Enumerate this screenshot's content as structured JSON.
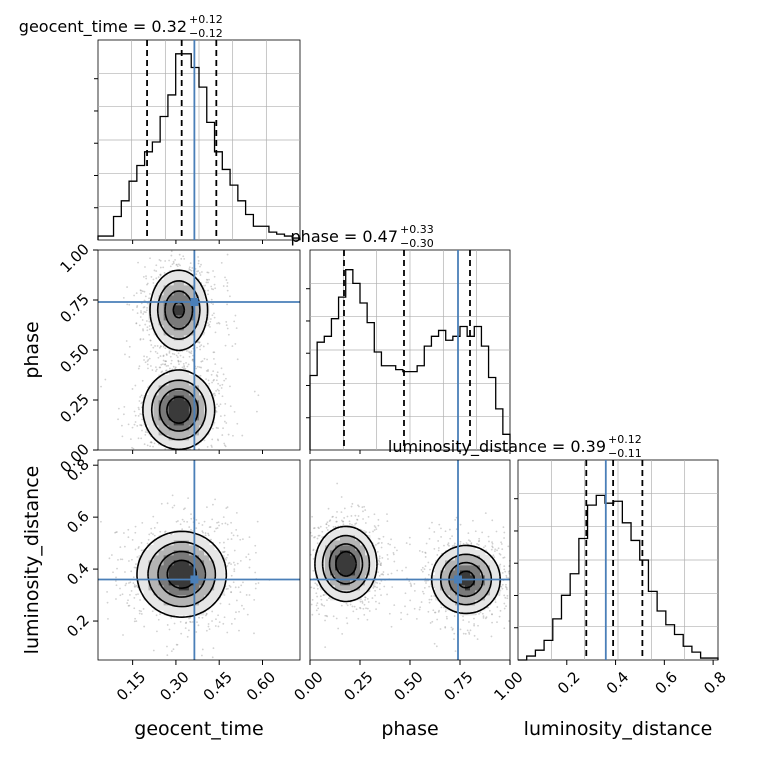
{
  "chart_data": [
    {
      "type": "histogram",
      "panel": "geocent_time-marginal",
      "title": {
        "main": "geocent_time = 0.32",
        "sup": "+0.12",
        "sub": "−0.12"
      },
      "x_range": [
        0.03,
        0.73
      ],
      "bins_counts": [
        0.02,
        0.02,
        0.12,
        0.2,
        0.3,
        0.38,
        0.45,
        0.5,
        0.63,
        0.74,
        0.95,
        0.95,
        0.88,
        0.78,
        0.6,
        0.45,
        0.36,
        0.28,
        0.2,
        0.13,
        0.07,
        0.07,
        0.04,
        0.03,
        0.02,
        0.01
      ],
      "quantile_lines": [
        0.2,
        0.32,
        0.44
      ],
      "truth": 0.364
    },
    {
      "type": "histogram",
      "panel": "phase-marginal",
      "title": {
        "main": "phase = 0.47",
        "sup": "+0.33",
        "sub": "−0.30"
      },
      "x_range": [
        0.0,
        1.0
      ],
      "bins_counts": [
        0.38,
        0.55,
        0.58,
        0.67,
        0.78,
        0.92,
        0.85,
        0.75,
        0.65,
        0.5,
        0.43,
        0.43,
        0.41,
        0.4,
        0.4,
        0.43,
        0.53,
        0.58,
        0.61,
        0.56,
        0.58,
        0.63,
        0.58,
        0.63,
        0.53,
        0.37,
        0.21,
        0.08
      ],
      "quantile_lines": [
        0.17,
        0.47,
        0.8
      ],
      "truth": 0.74
    },
    {
      "type": "histogram",
      "panel": "luminosity_distance-marginal",
      "title": {
        "main": "luminosity_distance = 0.39",
        "sup": "+0.12",
        "sub": "−0.11"
      },
      "x_range": [
        0.0,
        0.82
      ],
      "bins_counts": [
        0.0,
        0.02,
        0.05,
        0.1,
        0.21,
        0.33,
        0.44,
        0.62,
        0.79,
        0.84,
        0.8,
        0.81,
        0.7,
        0.61,
        0.51,
        0.35,
        0.25,
        0.18,
        0.13,
        0.07,
        0.04,
        0.01,
        0.01
      ],
      "quantile_lines": [
        0.28,
        0.39,
        0.51
      ],
      "truth": 0.36
    },
    {
      "type": "contour",
      "panel": "phase-vs-geocent_time",
      "x_range": [
        0.03,
        0.73
      ],
      "y_range": [
        0.0,
        1.0
      ],
      "truth": [
        0.364,
        0.74
      ],
      "modes": [
        {
          "x": 0.31,
          "y": 0.2,
          "sx": 0.06,
          "sy": 0.095,
          "w": 1.0
        },
        {
          "x": 0.31,
          "y": 0.7,
          "sx": 0.05,
          "sy": 0.1,
          "w": 0.85
        }
      ]
    },
    {
      "type": "contour",
      "panel": "luminosity_distance-vs-geocent_time",
      "x_range": [
        0.03,
        0.73
      ],
      "y_range": [
        0.05,
        0.82
      ],
      "truth": [
        0.364,
        0.36
      ],
      "modes": [
        {
          "x": 0.32,
          "y": 0.38,
          "sx": 0.075,
          "sy": 0.08,
          "w": 1.0
        }
      ]
    },
    {
      "type": "contour",
      "panel": "luminosity_distance-vs-phase",
      "x_range": [
        0.0,
        1.0
      ],
      "y_range": [
        0.05,
        0.82
      ],
      "truth": [
        0.74,
        0.36
      ],
      "modes": [
        {
          "x": 0.18,
          "y": 0.42,
          "sx": 0.075,
          "sy": 0.07,
          "w": 1.0
        },
        {
          "x": 0.78,
          "y": 0.36,
          "sx": 0.085,
          "sy": 0.065,
          "w": 0.9
        }
      ]
    }
  ],
  "axes": {
    "geocent_time": {
      "label": "geocent_time",
      "ticks": [
        "0.15",
        "0.30",
        "0.45",
        "0.60"
      ],
      "tick_values": [
        0.15,
        0.3,
        0.45,
        0.6
      ]
    },
    "phase": {
      "label": "phase",
      "ticks": [
        "0.00",
        "0.25",
        "0.50",
        "0.75",
        "1.00"
      ],
      "tick_values": [
        0.0,
        0.25,
        0.5,
        0.75,
        1.0
      ]
    },
    "luminosity_distance": {
      "label": "luminosity_distance",
      "ticks_x": [
        "0.2",
        "0.4",
        "0.6",
        "0.8"
      ],
      "ticks_y": [
        "0.2",
        "0.4",
        "0.6",
        "0.8"
      ],
      "tick_values": [
        0.2,
        0.4,
        0.6,
        0.8
      ]
    }
  },
  "colors": {
    "truth": "#4a7fb8",
    "hist": "#000000",
    "grid": "#b0b0b0",
    "contour_fill": [
      "#e6e6e6",
      "#b4b4b4",
      "#7a7a7a",
      "#3a3a3a"
    ]
  }
}
